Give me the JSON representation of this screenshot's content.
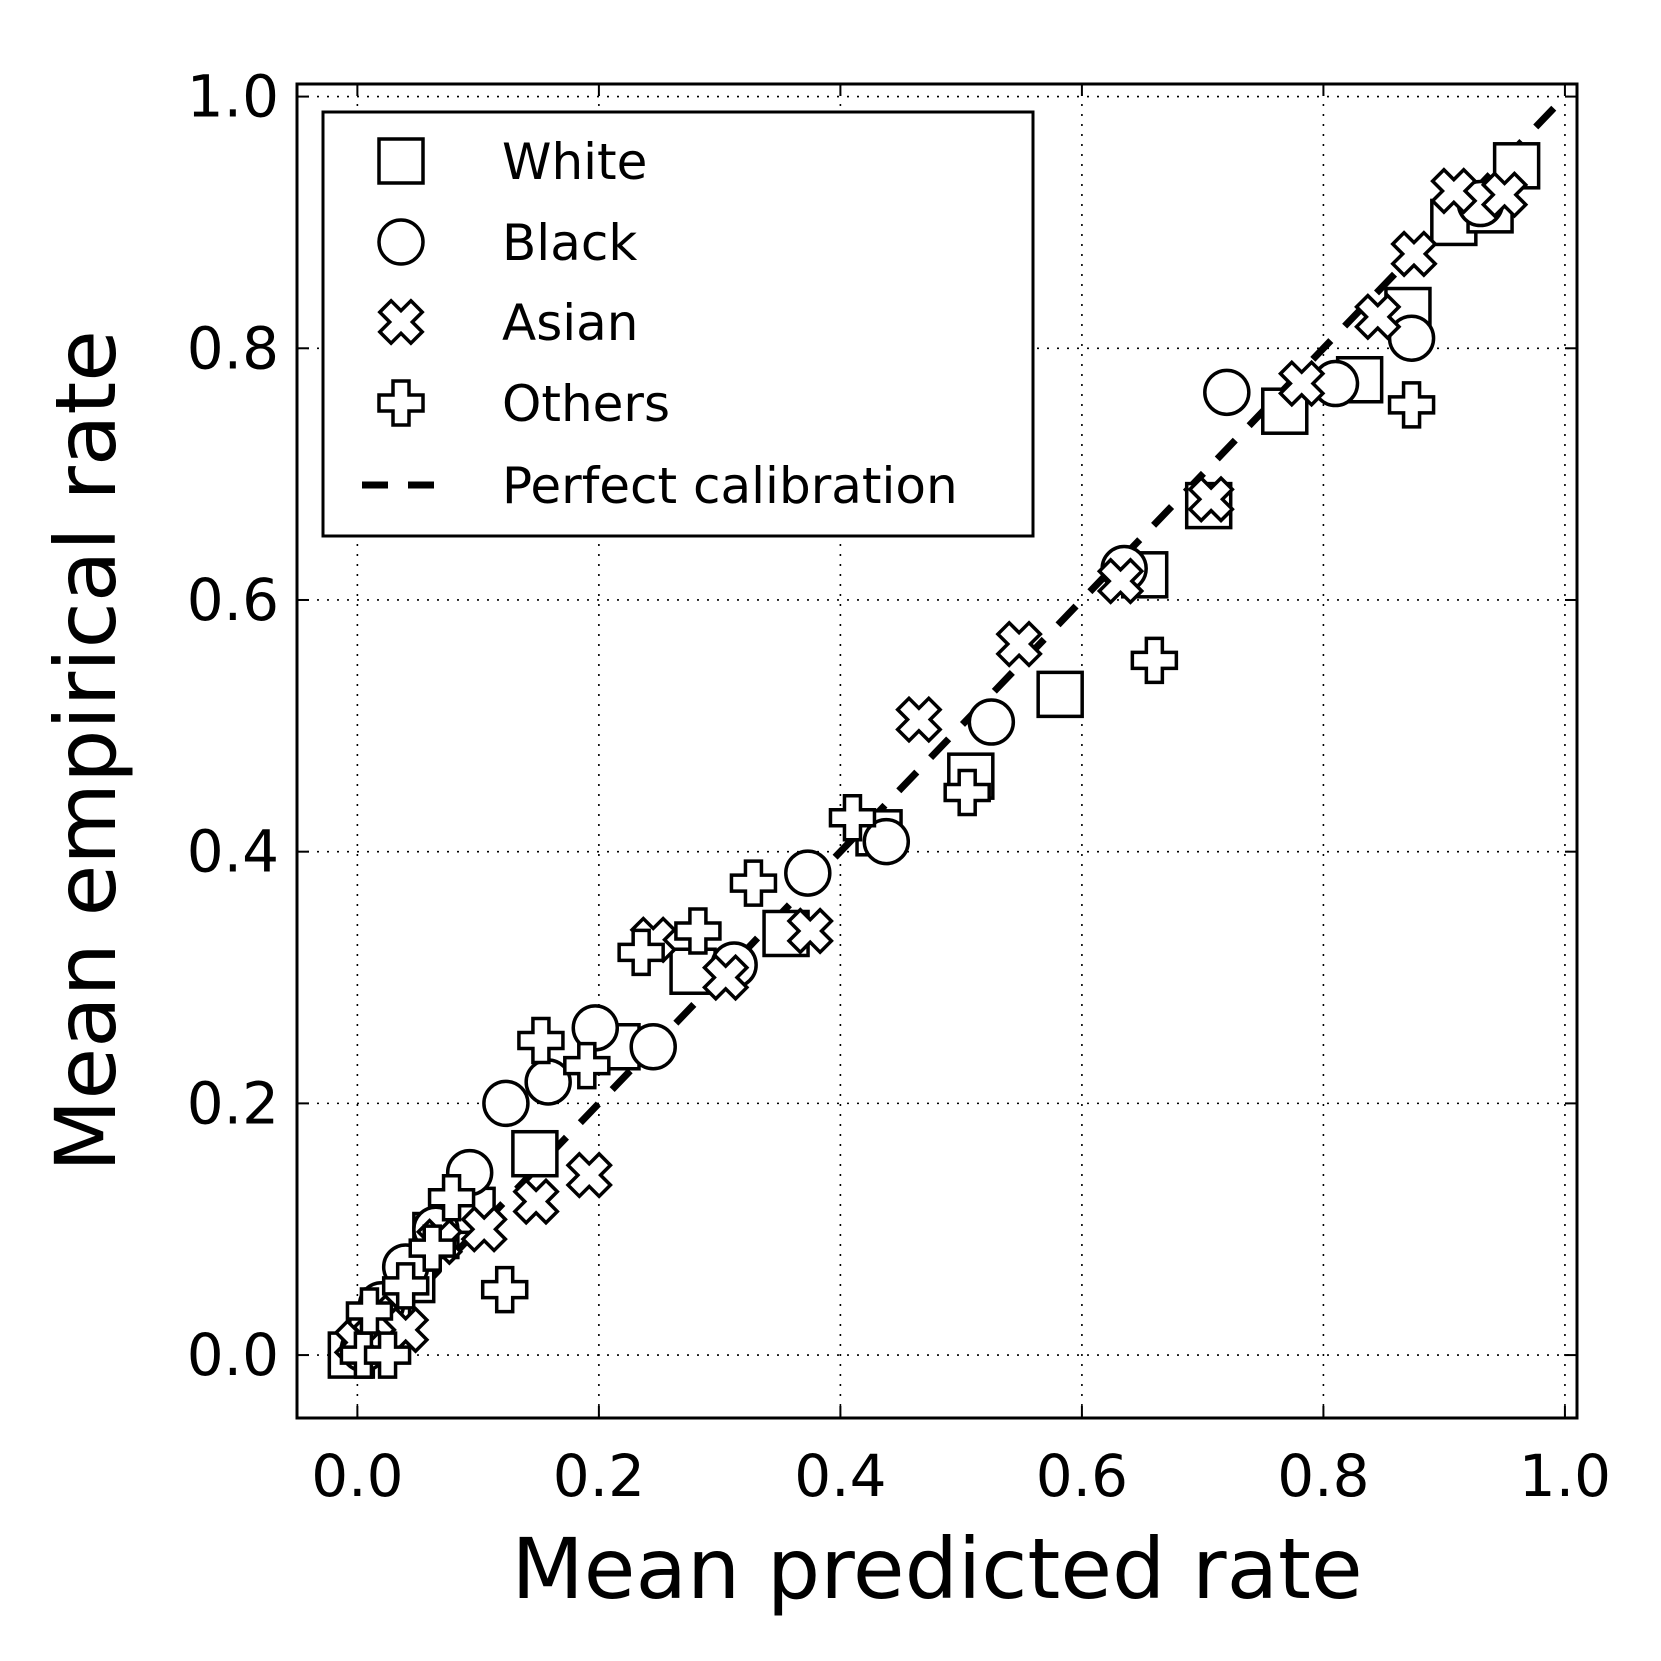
{
  "chart_data": {
    "type": "scatter",
    "title": "",
    "xlabel": "Mean predicted rate",
    "ylabel": "Mean empirical rate",
    "xlim": [
      -0.05,
      1.01
    ],
    "ylim": [
      -0.05,
      1.01
    ],
    "xticks": [
      "0.0",
      "0.2",
      "0.4",
      "0.6",
      "0.8",
      "1.0"
    ],
    "yticks": [
      "0.0",
      "0.2",
      "0.4",
      "0.6",
      "0.8",
      "1.0"
    ],
    "tick_values": [
      0.0,
      0.2,
      0.4,
      0.6,
      0.8,
      1.0
    ],
    "grid": true,
    "legend_position": "upper-left",
    "series": [
      {
        "name": "White",
        "marker": "square",
        "points": [
          [
            -0.005,
            0.0
          ],
          [
            0.012,
            0.02
          ],
          [
            0.025,
            0.035
          ],
          [
            0.045,
            0.06
          ],
          [
            0.065,
            0.095
          ],
          [
            0.095,
            0.115
          ],
          [
            0.147,
            0.16
          ],
          [
            0.215,
            0.245
          ],
          [
            0.278,
            0.305
          ],
          [
            0.355,
            0.335
          ],
          [
            0.432,
            0.415
          ],
          [
            0.508,
            0.46
          ],
          [
            0.582,
            0.525
          ],
          [
            0.652,
            0.62
          ],
          [
            0.705,
            0.675
          ],
          [
            0.768,
            0.75
          ],
          [
            0.83,
            0.775
          ],
          [
            0.87,
            0.83
          ],
          [
            0.908,
            0.9
          ],
          [
            0.938,
            0.91
          ],
          [
            0.96,
            0.945
          ]
        ]
      },
      {
        "name": "Black",
        "marker": "circle",
        "points": [
          [
            0.005,
            0.005
          ],
          [
            0.02,
            0.04
          ],
          [
            0.04,
            0.07
          ],
          [
            0.065,
            0.1
          ],
          [
            0.093,
            0.145
          ],
          [
            0.123,
            0.2
          ],
          [
            0.158,
            0.217
          ],
          [
            0.197,
            0.26
          ],
          [
            0.245,
            0.245
          ],
          [
            0.312,
            0.31
          ],
          [
            0.373,
            0.383
          ],
          [
            0.438,
            0.408
          ],
          [
            0.525,
            0.503
          ],
          [
            0.635,
            0.625
          ],
          [
            0.72,
            0.765
          ],
          [
            0.81,
            0.772
          ],
          [
            0.873,
            0.808
          ],
          [
            0.93,
            0.915
          ]
        ]
      },
      {
        "name": "Asian",
        "marker": "x",
        "points": [
          [
            0.0,
            0.01
          ],
          [
            0.015,
            0.03
          ],
          [
            0.04,
            0.02
          ],
          [
            0.068,
            0.09
          ],
          [
            0.105,
            0.1
          ],
          [
            0.148,
            0.122
          ],
          [
            0.192,
            0.143
          ],
          [
            0.245,
            0.33
          ],
          [
            0.305,
            0.3
          ],
          [
            0.375,
            0.337
          ],
          [
            0.465,
            0.505
          ],
          [
            0.548,
            0.565
          ],
          [
            0.632,
            0.615
          ],
          [
            0.707,
            0.68
          ],
          [
            0.782,
            0.772
          ],
          [
            0.845,
            0.825
          ],
          [
            0.875,
            0.875
          ],
          [
            0.908,
            0.925
          ],
          [
            0.95,
            0.922
          ]
        ]
      },
      {
        "name": "Others",
        "marker": "plus",
        "points": [
          [
            0.005,
            0.0
          ],
          [
            0.025,
            0.0
          ],
          [
            0.01,
            0.035
          ],
          [
            0.04,
            0.055
          ],
          [
            0.062,
            0.085
          ],
          [
            0.078,
            0.125
          ],
          [
            0.122,
            0.052
          ],
          [
            0.152,
            0.25
          ],
          [
            0.19,
            0.23
          ],
          [
            0.235,
            0.32
          ],
          [
            0.282,
            0.337
          ],
          [
            0.328,
            0.375
          ],
          [
            0.41,
            0.427
          ],
          [
            0.505,
            0.447
          ],
          [
            0.66,
            0.552
          ],
          [
            0.873,
            0.755
          ]
        ]
      }
    ],
    "reference_line": {
      "name": "Perfect calibration",
      "style": "dashed",
      "from": [
        0.0,
        0.0
      ],
      "to": [
        1.0,
        1.0
      ]
    }
  }
}
